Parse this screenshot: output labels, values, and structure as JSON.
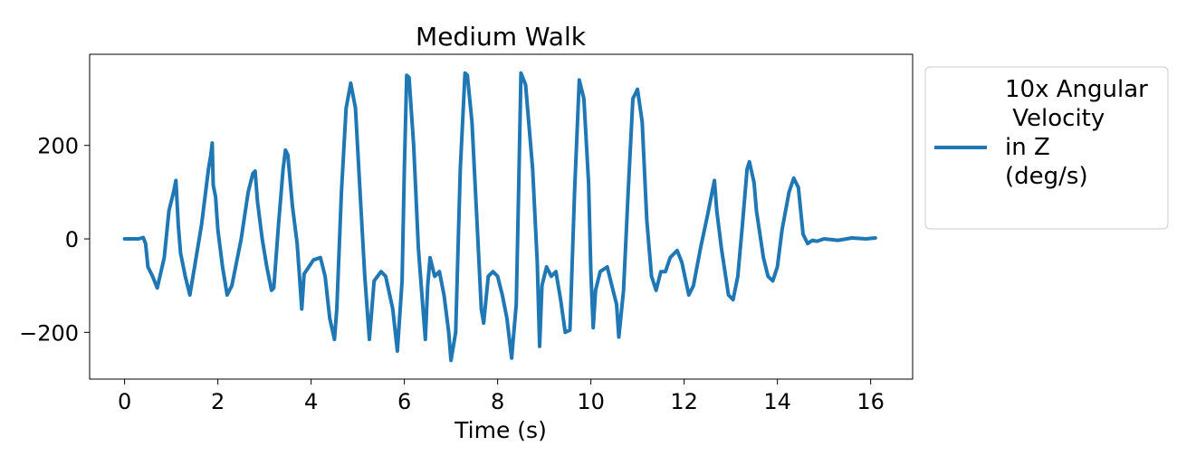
{
  "chart_data": {
    "type": "line",
    "title": "Medium Walk",
    "xlabel": "Time (s)",
    "ylabel": "",
    "xlim": [
      -0.75,
      16.9
    ],
    "ylim": [
      -300,
      395
    ],
    "xticks": [
      0,
      2,
      4,
      6,
      8,
      10,
      12,
      14,
      16
    ],
    "xtick_labels": [
      "0",
      "2",
      "4",
      "6",
      "8",
      "10",
      "12",
      "14",
      "16"
    ],
    "yticks": [
      -200,
      0,
      200
    ],
    "ytick_labels": [
      "−200",
      "0",
      "200"
    ],
    "grid": false,
    "legend_position": "outside-right",
    "series": [
      {
        "name": "10x Angular Velocity in Z (deg/s)",
        "legend_lines": [
          "10x Angular",
          " Velocity",
          "in Z",
          "(deg/s)"
        ],
        "color": "#1f77b4",
        "points": [
          [
            0,
            0
          ],
          [
            0.3,
            0
          ],
          [
            0.4,
            3
          ],
          [
            0.45,
            -10
          ],
          [
            0.5,
            -60
          ],
          [
            0.6,
            -80
          ],
          [
            0.7,
            -105
          ],
          [
            0.85,
            -40
          ],
          [
            0.95,
            60
          ],
          [
            1.05,
            100
          ],
          [
            1.1,
            125
          ],
          [
            1.15,
            30
          ],
          [
            1.2,
            -30
          ],
          [
            1.3,
            -80
          ],
          [
            1.4,
            -120
          ],
          [
            1.5,
            -60
          ],
          [
            1.65,
            30
          ],
          [
            1.8,
            150
          ],
          [
            1.85,
            180
          ],
          [
            1.88,
            205
          ],
          [
            1.9,
            115
          ],
          [
            1.95,
            90
          ],
          [
            2.0,
            20
          ],
          [
            2.1,
            -60
          ],
          [
            2.2,
            -120
          ],
          [
            2.3,
            -100
          ],
          [
            2.5,
            0
          ],
          [
            2.65,
            100
          ],
          [
            2.75,
            140
          ],
          [
            2.8,
            145
          ],
          [
            2.85,
            80
          ],
          [
            2.95,
            0
          ],
          [
            3.05,
            -60
          ],
          [
            3.15,
            -110
          ],
          [
            3.2,
            -105
          ],
          [
            3.3,
            30
          ],
          [
            3.4,
            150
          ],
          [
            3.45,
            190
          ],
          [
            3.5,
            180
          ],
          [
            3.6,
            70
          ],
          [
            3.7,
            -10
          ],
          [
            3.75,
            -80
          ],
          [
            3.8,
            -150
          ],
          [
            3.85,
            -75
          ],
          [
            3.95,
            -60
          ],
          [
            4.05,
            -45
          ],
          [
            4.2,
            -40
          ],
          [
            4.3,
            -80
          ],
          [
            4.4,
            -170
          ],
          [
            4.5,
            -215
          ],
          [
            4.55,
            -150
          ],
          [
            4.65,
            100
          ],
          [
            4.75,
            280
          ],
          [
            4.85,
            333
          ],
          [
            4.95,
            280
          ],
          [
            5.05,
            100
          ],
          [
            5.15,
            -80
          ],
          [
            5.25,
            -215
          ],
          [
            5.35,
            -90
          ],
          [
            5.5,
            -70
          ],
          [
            5.6,
            -80
          ],
          [
            5.75,
            -150
          ],
          [
            5.85,
            -240
          ],
          [
            5.95,
            -90
          ],
          [
            6.0,
            150
          ],
          [
            6.05,
            350
          ],
          [
            6.1,
            345
          ],
          [
            6.2,
            200
          ],
          [
            6.3,
            -20
          ],
          [
            6.4,
            -150
          ],
          [
            6.45,
            -215
          ],
          [
            6.5,
            -100
          ],
          [
            6.55,
            -40
          ],
          [
            6.65,
            -80
          ],
          [
            6.75,
            -70
          ],
          [
            6.85,
            -120
          ],
          [
            6.95,
            -200
          ],
          [
            7.0,
            -260
          ],
          [
            7.1,
            -200
          ],
          [
            7.2,
            150
          ],
          [
            7.3,
            355
          ],
          [
            7.35,
            350
          ],
          [
            7.45,
            250
          ],
          [
            7.55,
            50
          ],
          [
            7.65,
            -150
          ],
          [
            7.7,
            -180
          ],
          [
            7.8,
            -80
          ],
          [
            7.9,
            -70
          ],
          [
            8.0,
            -80
          ],
          [
            8.1,
            -120
          ],
          [
            8.2,
            -170
          ],
          [
            8.3,
            -255
          ],
          [
            8.4,
            -140
          ],
          [
            8.45,
            100
          ],
          [
            8.5,
            355
          ],
          [
            8.6,
            330
          ],
          [
            8.75,
            150
          ],
          [
            8.85,
            -50
          ],
          [
            8.9,
            -230
          ],
          [
            8.95,
            -100
          ],
          [
            9.05,
            -60
          ],
          [
            9.15,
            -80
          ],
          [
            9.25,
            -70
          ],
          [
            9.35,
            -130
          ],
          [
            9.45,
            -200
          ],
          [
            9.55,
            -195
          ],
          [
            9.65,
            100
          ],
          [
            9.75,
            340
          ],
          [
            9.85,
            300
          ],
          [
            9.95,
            120
          ],
          [
            10.0,
            -70
          ],
          [
            10.05,
            -190
          ],
          [
            10.1,
            -110
          ],
          [
            10.2,
            -70
          ],
          [
            10.35,
            -60
          ],
          [
            10.45,
            -100
          ],
          [
            10.55,
            -140
          ],
          [
            10.6,
            -210
          ],
          [
            10.7,
            -110
          ],
          [
            10.8,
            100
          ],
          [
            10.9,
            300
          ],
          [
            11.0,
            320
          ],
          [
            11.1,
            250
          ],
          [
            11.2,
            40
          ],
          [
            11.3,
            -80
          ],
          [
            11.4,
            -110
          ],
          [
            11.5,
            -70
          ],
          [
            11.6,
            -70
          ],
          [
            11.7,
            -40
          ],
          [
            11.85,
            -25
          ],
          [
            11.95,
            -50
          ],
          [
            12.1,
            -120
          ],
          [
            12.2,
            -100
          ],
          [
            12.35,
            -20
          ],
          [
            12.5,
            50
          ],
          [
            12.6,
            100
          ],
          [
            12.65,
            125
          ],
          [
            12.7,
            60
          ],
          [
            12.8,
            -20
          ],
          [
            12.95,
            -120
          ],
          [
            13.05,
            -130
          ],
          [
            13.15,
            -80
          ],
          [
            13.25,
            30
          ],
          [
            13.35,
            150
          ],
          [
            13.4,
            165
          ],
          [
            13.5,
            120
          ],
          [
            13.55,
            60
          ],
          [
            13.7,
            -40
          ],
          [
            13.8,
            -80
          ],
          [
            13.9,
            -90
          ],
          [
            14.0,
            -60
          ],
          [
            14.1,
            20
          ],
          [
            14.25,
            100
          ],
          [
            14.35,
            130
          ],
          [
            14.45,
            110
          ],
          [
            14.5,
            60
          ],
          [
            14.55,
            10
          ],
          [
            14.65,
            -10
          ],
          [
            14.75,
            -3
          ],
          [
            14.85,
            -5
          ],
          [
            15.0,
            0
          ],
          [
            15.3,
            -3
          ],
          [
            15.6,
            2
          ],
          [
            15.9,
            0
          ],
          [
            16.1,
            2
          ]
        ]
      }
    ]
  }
}
